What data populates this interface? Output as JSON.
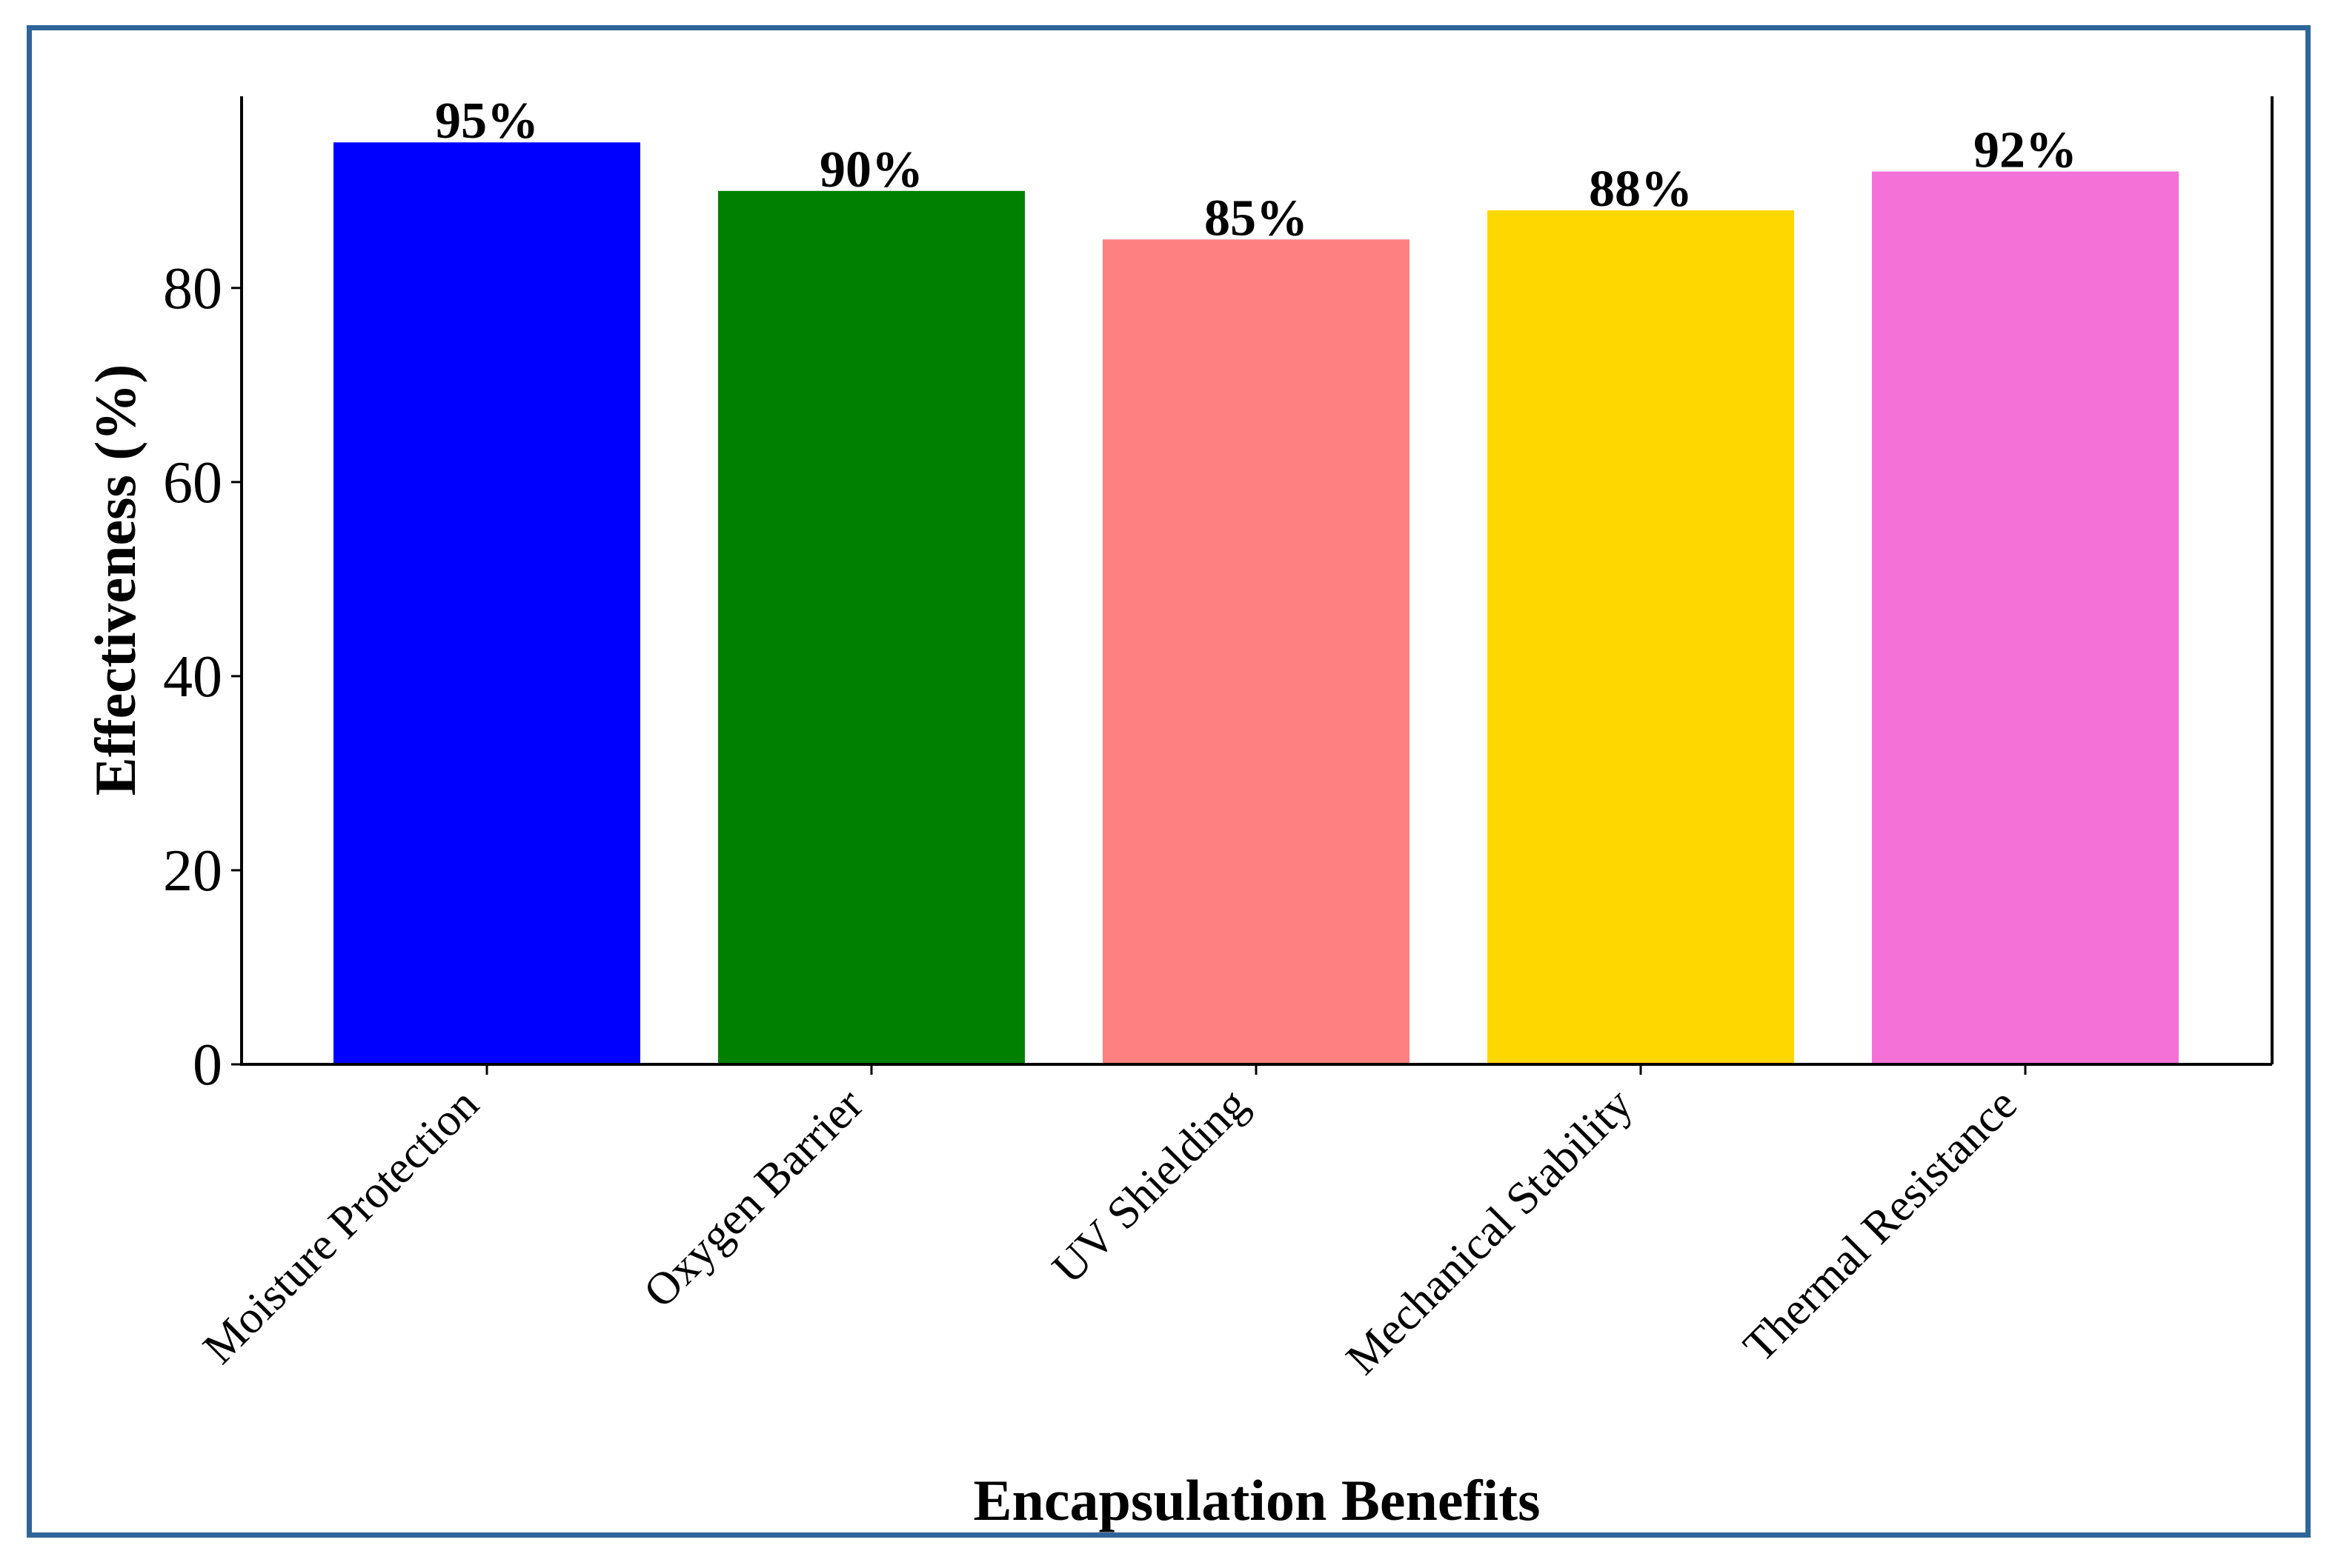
{
  "chart_data": {
    "type": "bar",
    "categories": [
      "Moisture Protection",
      "Oxygen Barrier",
      "UV Shielding",
      "Mechanical Stability",
      "Thermal Resistance"
    ],
    "values": [
      95,
      90,
      85,
      88,
      92
    ],
    "data_labels": [
      "95%",
      "90%",
      "85%",
      "88%",
      "92%"
    ],
    "colors": [
      "#0000ff",
      "#008000",
      "#ff8080",
      "#ffd700",
      "#f472d8"
    ],
    "xlabel": "Encapsulation Benefits",
    "ylabel": "Effectiveness (%)",
    "y_ticks": [
      0,
      20,
      40,
      60,
      80
    ],
    "ylim": [
      0,
      99.75
    ],
    "grid": false,
    "legend": "none"
  }
}
